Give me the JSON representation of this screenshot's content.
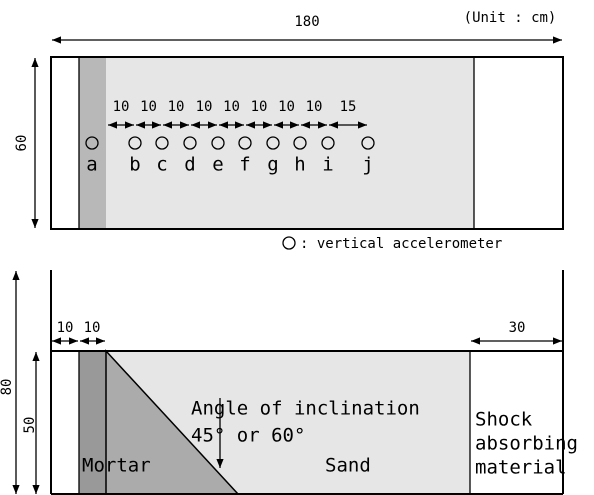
{
  "unit": "(Unit : cm)",
  "top_view": {
    "length": "180",
    "width": "60",
    "spacings": [
      "10",
      "10",
      "10",
      "10",
      "10",
      "10",
      "10",
      "10",
      "15"
    ],
    "sensors": [
      "a",
      "b",
      "c",
      "d",
      "e",
      "f",
      "g",
      "h",
      "i",
      "j"
    ]
  },
  "legend": ": vertical accelerometer",
  "side_view": {
    "height": "80",
    "sand_depth": "50",
    "left_spacings": [
      "10",
      "10"
    ],
    "right_width": "30",
    "angle_label": "Angle of inclination",
    "angle_values": "45° or 60°",
    "mortar": "Mortar",
    "sand": "Sand",
    "absorber": [
      "Shock",
      "absorbing",
      "material"
    ]
  }
}
